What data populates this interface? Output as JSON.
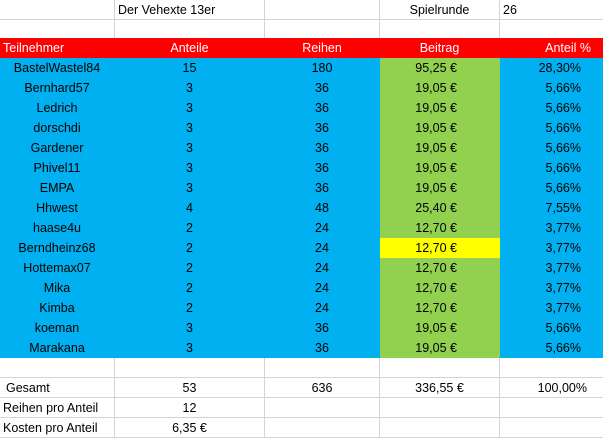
{
  "title": "Der Vehexte 13er",
  "spielrunde_label": "Spielrunde",
  "spielrunde_value": "26",
  "headers": [
    "Teilnehmer",
    "Anteile",
    "Reihen",
    "Beitrag",
    "Anteil %"
  ],
  "rows": [
    {
      "name": "BastelWastel84",
      "anteile": "15",
      "reihen": "180",
      "beitrag": "95,25 €",
      "anteil_pct": "28,30%"
    },
    {
      "name": "Bernhard57",
      "anteile": "3",
      "reihen": "36",
      "beitrag": "19,05 €",
      "anteil_pct": "5,66%"
    },
    {
      "name": "Ledrich",
      "anteile": "3",
      "reihen": "36",
      "beitrag": "19,05 €",
      "anteil_pct": "5,66%"
    },
    {
      "name": "dorschdi",
      "anteile": "3",
      "reihen": "36",
      "beitrag": "19,05 €",
      "anteil_pct": "5,66%"
    },
    {
      "name": "Gardener",
      "anteile": "3",
      "reihen": "36",
      "beitrag": "19,05 €",
      "anteil_pct": "5,66%"
    },
    {
      "name": "Phivel11",
      "anteile": "3",
      "reihen": "36",
      "beitrag": "19,05 €",
      "anteil_pct": "5,66%"
    },
    {
      "name": "EMPA",
      "anteile": "3",
      "reihen": "36",
      "beitrag": "19,05 €",
      "anteil_pct": "5,66%"
    },
    {
      "name": "Hhwest",
      "anteile": "4",
      "reihen": "48",
      "beitrag": "25,40 €",
      "anteil_pct": "7,55%"
    },
    {
      "name": "haase4u",
      "anteile": "2",
      "reihen": "24",
      "beitrag": "12,70 €",
      "anteil_pct": "3,77%"
    },
    {
      "name": "Berndheinz68",
      "anteile": "2",
      "reihen": "24",
      "beitrag": "12,70 €",
      "anteil_pct": "3,77%",
      "highlight": true
    },
    {
      "name": "Hottemax07",
      "anteile": "2",
      "reihen": "24",
      "beitrag": "12,70 €",
      "anteil_pct": "3,77%"
    },
    {
      "name": "Mika",
      "anteile": "2",
      "reihen": "24",
      "beitrag": "12,70 €",
      "anteil_pct": "3,77%"
    },
    {
      "name": "Kimba",
      "anteile": "2",
      "reihen": "24",
      "beitrag": "12,70 €",
      "anteil_pct": "3,77%"
    },
    {
      "name": "koeman",
      "anteile": "3",
      "reihen": "36",
      "beitrag": "19,05 €",
      "anteil_pct": "5,66%"
    },
    {
      "name": "Marakana",
      "anteile": "3",
      "reihen": "36",
      "beitrag": "19,05 €",
      "anteil_pct": "5,66%"
    }
  ],
  "totals": {
    "label": "Gesamt",
    "anteile": "53",
    "reihen": "636",
    "beitrag": "336,55 €",
    "anteil_pct": "100,00%"
  },
  "reihen_pro_anteil": {
    "label": "Reihen pro Anteil",
    "value": "12"
  },
  "kosten_pro_anteil": {
    "label": "Kosten pro Anteil",
    "value": "6,35 €"
  },
  "colors": {
    "header": "#ff0000",
    "data": "#00b0f0",
    "beitrag": "#92d050",
    "highlight": "#ffff00"
  }
}
